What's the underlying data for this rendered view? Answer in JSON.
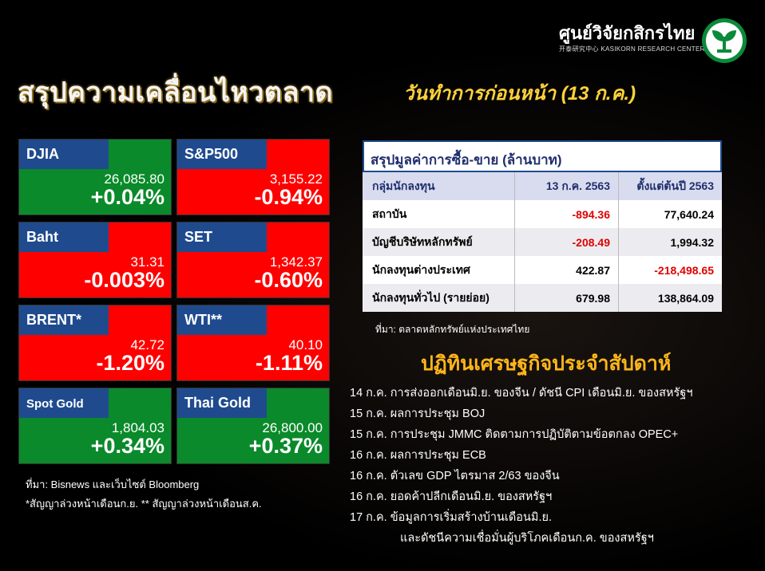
{
  "header": {
    "title": "สรุปความเคลื่อนไหวตลาด",
    "subtitle": "วันทำการก่อนหน้า (13 ก.ค.)",
    "brand_name": "ศูนย์วิจัยกสิกรไทย",
    "brand_sub": "开泰研究中心 KASIKORN RESEARCH CENTER"
  },
  "markets": [
    {
      "name": "DJIA",
      "value": "26,085.80",
      "change": "+0.04%",
      "trend": "up"
    },
    {
      "name": "S&P500",
      "value": "3,155.22",
      "change": "-0.94%",
      "trend": "down"
    },
    {
      "name": "Baht",
      "value": "31.31",
      "change": "-0.003%",
      "trend": "down"
    },
    {
      "name": "SET",
      "value": "1,342.37",
      "change": "-0.60%",
      "trend": "down"
    },
    {
      "name": "BRENT*",
      "value": "42.72",
      "change": "-1.20%",
      "trend": "down"
    },
    {
      "name": "WTI**",
      "value": "40.10",
      "change": "-1.11%",
      "trend": "down"
    },
    {
      "name": "Spot Gold",
      "value": "1,804.03",
      "change": "+0.34%",
      "trend": "up"
    },
    {
      "name": "Thai Gold",
      "value": "26,800.00",
      "change": "+0.37%",
      "trend": "up"
    }
  ],
  "markets_source": "ที่มา: Bisnews และเว็บไซต์ Bloomberg",
  "markets_note": "*สัญญาล่วงหน้าเดือนก.ย. ** สัญญาล่วงหน้าเดือนส.ค.",
  "colors": {
    "up": "#0a8a2a",
    "down": "#ff0000",
    "label": "#1f4b8e",
    "accent": "#ffb61a"
  },
  "trading": {
    "title": "สรุปมูลค่าการซื้อ-ขาย (ล้านบาท)",
    "columns": [
      "กลุ่มนักลงทุน",
      "13 ก.ค. 2563",
      "ตั้งแต่ต้นปี 2563"
    ],
    "rows": [
      {
        "group": "สถาบัน",
        "day": "-894.36",
        "ytd": "77,640.24"
      },
      {
        "group": "บัญชีบริษัทหลักทรัพย์",
        "day": "-208.49",
        "ytd": "1,994.32"
      },
      {
        "group": "นักลงทุนต่างประเทศ",
        "day": "422.87",
        "ytd": "-218,498.65"
      },
      {
        "group": "นักลงทุนทั่วไป (รายย่อย)",
        "day": "679.98",
        "ytd": "138,864.09"
      }
    ],
    "source": "ที่มา: ตลาดหลักทรัพย์แห่งประเทศไทย"
  },
  "calendar": {
    "title": "ปฏิทินเศรษฐกิจประจำสัปดาห์",
    "events": [
      "14 ก.ค. การส่งออกเดือนมิ.ย. ของจีน / ดัชนี CPI เดือนมิ.ย. ของสหรัฐฯ",
      "15 ก.ค. ผลการประชุม BOJ",
      "15 ก.ค. การประชุม JMMC ติดตามการปฏิบัติตามข้อตกลง OPEC+",
      "16 ก.ค. ผลการประชุม ECB",
      "16 ก.ค. ตัวเลข GDP ไตรมาส 2/63 ของจีน",
      "16 ก.ค. ยอดค้าปลีกเดือนมิ.ย. ของสหรัฐฯ",
      "17 ก.ค. ข้อมูลการเริ่มสร้างบ้านเดือนมิ.ย.",
      "และดัชนีความเชื่อมั่นผู้บริโภคเดือนก.ค. ของสหรัฐฯ"
    ]
  }
}
